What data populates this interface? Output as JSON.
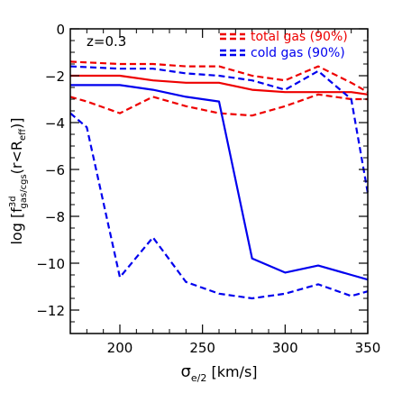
{
  "chart_data": {
    "type": "line",
    "annotation": "z=0.3",
    "xlabel": {
      "symbol": "σ",
      "subscript": "e/2",
      "unit": " [km/s]"
    },
    "ylabel": {
      "prefix": "log [",
      "f": "f",
      "sup": "3d",
      "sub": "gas/cgs",
      "suffix": "(r<R",
      "reff": "eff",
      "end": ")]"
    },
    "xlim": [
      170,
      350
    ],
    "ylim": [
      -13,
      0
    ],
    "xticks": [
      200,
      250,
      300,
      350
    ],
    "yticks": [
      0,
      -2,
      -4,
      -6,
      -8,
      -10,
      -12
    ],
    "xtick_labels": [
      "200",
      "250",
      "300",
      "350"
    ],
    "ytick_labels": [
      "0",
      "−2",
      "−4",
      "−6",
      "−8",
      "−10",
      "−12"
    ],
    "legend": [
      {
        "label": "total gas (90%)",
        "color": "#ee0000"
      },
      {
        "label": "cold gas (90%)",
        "color": "#0000ee"
      }
    ],
    "series": [
      {
        "group": "total gas",
        "style": "solid",
        "color": "#ee0000",
        "x": [
          170,
          200,
          220,
          240,
          260,
          280,
          300,
          320,
          340,
          350
        ],
        "y": [
          -2.0,
          -2.0,
          -2.2,
          -2.3,
          -2.3,
          -2.6,
          -2.7,
          -2.7,
          -2.7,
          -2.8
        ]
      },
      {
        "group": "total gas",
        "style": "dashed",
        "color": "#ee0000",
        "x": [
          170,
          200,
          220,
          240,
          260,
          280,
          300,
          320,
          340,
          350
        ],
        "y": [
          -1.4,
          -1.5,
          -1.5,
          -1.6,
          -1.6,
          -2.0,
          -2.2,
          -1.6,
          -2.3,
          -2.7
        ]
      },
      {
        "group": "total gas",
        "style": "dashed",
        "color": "#ee0000",
        "x": [
          170,
          180,
          200,
          220,
          240,
          260,
          280,
          300,
          320,
          340,
          350
        ],
        "y": [
          -2.9,
          -3.1,
          -3.6,
          -2.9,
          -3.3,
          -3.6,
          -3.7,
          -3.3,
          -2.8,
          -3.0,
          -3.0
        ]
      },
      {
        "group": "cold gas",
        "style": "solid",
        "color": "#0000ee",
        "x": [
          170,
          200,
          220,
          240,
          260,
          280,
          300,
          320,
          340,
          350
        ],
        "y": [
          -2.4,
          -2.4,
          -2.6,
          -2.9,
          -3.1,
          -9.8,
          -10.4,
          -10.1,
          -10.5,
          -10.7
        ]
      },
      {
        "group": "cold gas",
        "style": "dashed",
        "color": "#0000ee",
        "x": [
          170,
          200,
          220,
          240,
          260,
          280,
          300,
          320,
          340,
          350
        ],
        "y": [
          -1.6,
          -1.7,
          -1.7,
          -1.9,
          -2.0,
          -2.2,
          -2.6,
          -1.8,
          -3.0,
          -7.0
        ]
      },
      {
        "group": "cold gas",
        "style": "dashed",
        "color": "#0000ee",
        "x": [
          170,
          180,
          200,
          220,
          240,
          260,
          280,
          300,
          320,
          340,
          350
        ],
        "y": [
          -3.6,
          -4.2,
          -10.6,
          -8.9,
          -10.8,
          -11.3,
          -11.5,
          -11.3,
          -10.9,
          -11.4,
          -11.2
        ]
      }
    ]
  }
}
